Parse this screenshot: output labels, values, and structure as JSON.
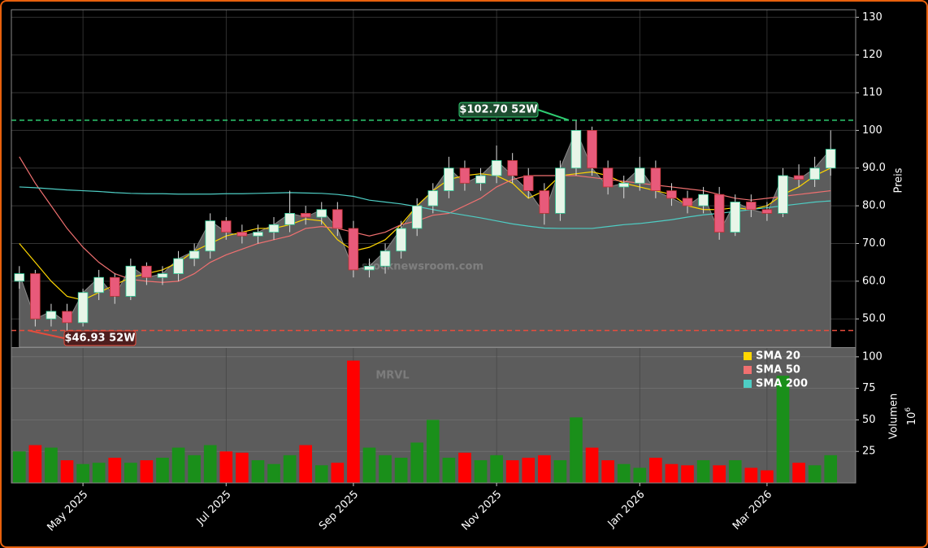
{
  "chart_data": [
    {
      "type": "candlestick",
      "ylabel": "Preis",
      "categories": [
        null,
        null,
        null,
        null,
        "May 2025",
        null,
        null,
        null,
        null,
        null,
        null,
        null,
        null,
        "Jul 2025",
        null,
        null,
        null,
        null,
        null,
        null,
        null,
        "Sep 2025",
        null,
        null,
        null,
        null,
        null,
        null,
        null,
        null,
        "Nov 2025",
        null,
        null,
        null,
        null,
        null,
        null,
        null,
        null,
        "Jan 2026",
        null,
        null,
        null,
        null,
        null,
        null,
        null,
        "Mar 2026",
        null,
        null,
        null,
        null
      ],
      "open": [
        60,
        62,
        50,
        52,
        49,
        57,
        61,
        56,
        64,
        61,
        62,
        66,
        68,
        76,
        73,
        72,
        73,
        75,
        78,
        77,
        79,
        74,
        63,
        64,
        68,
        74,
        80,
        84,
        90,
        86,
        88,
        92,
        88,
        84,
        78,
        90,
        100,
        90,
        85,
        86,
        90,
        84,
        82,
        80,
        83,
        73,
        81,
        79,
        78,
        88,
        87,
        90
      ],
      "high": [
        64,
        63,
        54,
        54,
        58,
        63,
        62,
        66,
        65,
        64,
        68,
        70,
        78,
        77,
        75,
        75,
        77,
        84,
        80,
        81,
        81,
        76,
        66,
        70,
        76,
        82,
        86,
        93,
        92,
        90,
        96,
        94,
        90,
        86,
        92,
        102.7,
        101,
        92,
        88,
        93,
        92,
        86,
        84,
        85,
        85,
        83,
        83,
        81,
        90,
        91,
        93,
        100
      ],
      "low": [
        58,
        48,
        48,
        46.93,
        48,
        55,
        54,
        55,
        59,
        59,
        60,
        64,
        66,
        71,
        70,
        70,
        71,
        73,
        75,
        75,
        72,
        61,
        61,
        62,
        66,
        72,
        78,
        82,
        84,
        84,
        86,
        86,
        82,
        75,
        76,
        88,
        88,
        83,
        82,
        84,
        82,
        80,
        78,
        78,
        71,
        72,
        77,
        76,
        77,
        85,
        85,
        88
      ],
      "close": [
        62,
        50,
        52,
        49,
        57,
        61,
        56,
        64,
        61,
        62,
        66,
        68,
        76,
        73,
        72,
        73,
        75,
        78,
        77,
        79,
        74,
        63,
        64,
        68,
        74,
        80,
        84,
        90,
        86,
        88,
        92,
        88,
        84,
        78,
        90,
        100,
        90,
        85,
        86,
        90,
        84,
        82,
        80,
        83,
        73,
        81,
        79,
        78,
        88,
        87,
        90,
        95
      ],
      "up_color": "#e8f5e8",
      "down_color": "#e85a7a",
      "area_color": "#5c5c5c",
      "series": [
        {
          "name": "SMA 20",
          "color": "#ffd700",
          "values": [
            70,
            65,
            60,
            56,
            55,
            57,
            59,
            61,
            62,
            63,
            65,
            68,
            70,
            72,
            73,
            74,
            74,
            75,
            76.5,
            76,
            71,
            68,
            69,
            71,
            75,
            80,
            84,
            87,
            88,
            88.5,
            88,
            86,
            82,
            84,
            88,
            88.5,
            89,
            88,
            86,
            85,
            84,
            83,
            80,
            79,
            79,
            79.5,
            79,
            80,
            83,
            85,
            88,
            90
          ]
        },
        {
          "name": "SMA 50",
          "color": "#f07070",
          "values": [
            93,
            86,
            80,
            74,
            69,
            65,
            62,
            60.5,
            60,
            59.7,
            60,
            62,
            65,
            67,
            68.5,
            70,
            71,
            72,
            74,
            74.5,
            74,
            73,
            72,
            73,
            75,
            76,
            77.5,
            78,
            80,
            82,
            85,
            87,
            88,
            88,
            88,
            88,
            87.5,
            87,
            86.5,
            86,
            85.5,
            85,
            84.5,
            84,
            83,
            82,
            81.5,
            82,
            82.5,
            83,
            83.5,
            84
          ]
        },
        {
          "name": "SMA 200",
          "color": "#4ecdc4",
          "values": [
            85,
            84.8,
            84.5,
            84.2,
            84,
            83.8,
            83.5,
            83.3,
            83.2,
            83.2,
            83.1,
            83.1,
            83.1,
            83.2,
            83.2,
            83.3,
            83.4,
            83.5,
            83.4,
            83.3,
            83,
            82.5,
            81.5,
            81,
            80.5,
            79.8,
            79,
            78.2,
            77.5,
            76.8,
            76,
            75.2,
            74.6,
            74.1,
            74,
            74,
            74,
            74.5,
            75,
            75.3,
            75.8,
            76.3,
            77,
            77.6,
            78,
            78.5,
            79,
            79.5,
            80,
            80.5,
            81,
            81.3
          ]
        }
      ],
      "high_52w": {
        "value": 102.7,
        "label": "$102.70 52W",
        "color": "#2ecc71"
      },
      "low_52w": {
        "value": 46.93,
        "label": "$46.93 52W",
        "color": "#e74c3c"
      },
      "ylim": [
        42.5,
        132
      ],
      "yticks": [
        {
          "value": 50,
          "label": "50.0"
        },
        {
          "value": 60,
          "label": "60.0"
        },
        {
          "value": 70,
          "label": "70.0"
        },
        {
          "value": 80,
          "label": "80.0"
        },
        {
          "value": 90,
          "label": "90.0"
        },
        {
          "value": 100,
          "label": "100"
        },
        {
          "value": 110,
          "label": "110"
        },
        {
          "value": 120,
          "label": "120"
        },
        {
          "value": 130,
          "label": "130"
        }
      ],
      "grid": true,
      "watermark": "stocknewsroom.com"
    },
    {
      "type": "bar",
      "ylabel": "Volumen",
      "unit_base": "10",
      "unit_exp": "6",
      "ticker": "MRVL",
      "values": [
        25,
        30,
        28,
        18,
        15,
        16,
        20,
        16,
        18,
        20,
        28,
        22,
        30,
        25,
        24,
        18,
        15,
        22,
        30,
        14,
        16,
        97,
        28,
        22,
        20,
        32,
        50,
        20,
        24,
        18,
        22,
        18,
        20,
        22,
        18,
        52,
        28,
        18,
        15,
        12,
        20,
        15,
        14,
        18,
        14,
        18,
        12,
        10,
        85,
        16,
        14,
        22
      ],
      "up_color": "#1a8f1a",
      "down_color": "#ff0000",
      "ylim": [
        0,
        107
      ],
      "yticks": [
        25,
        50,
        75,
        100
      ],
      "grid": true,
      "legend": "top-right"
    }
  ]
}
